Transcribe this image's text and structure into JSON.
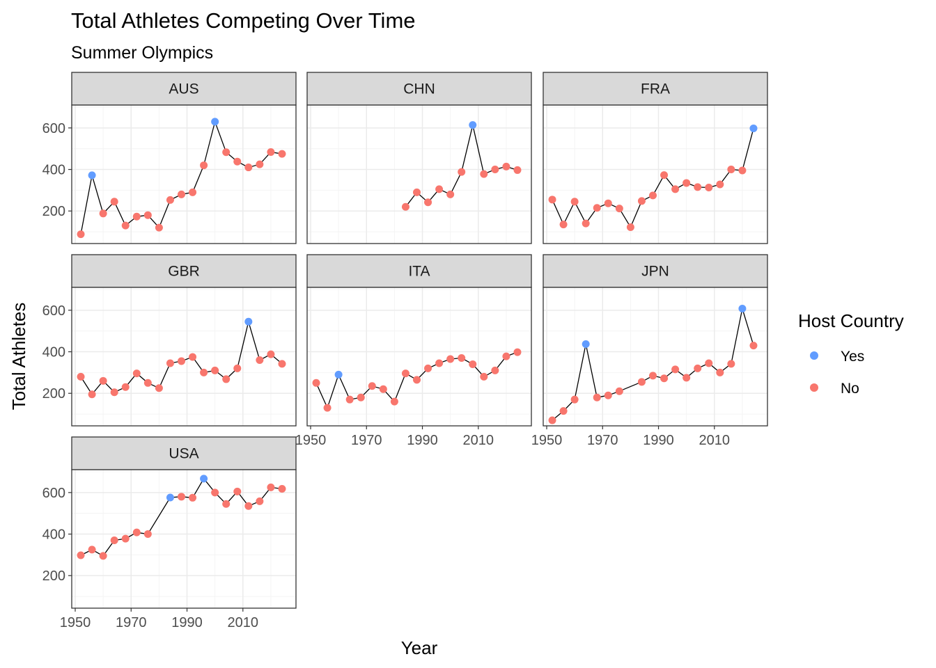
{
  "chart_data": {
    "type": "line",
    "title": "Total Athletes Competing Over Time",
    "subtitle": "Summer Olympics",
    "xlabel": "Year",
    "ylabel": "Total Athletes",
    "xlim": [
      1950,
      2026
    ],
    "ylim": [
      50,
      700
    ],
    "x_ticks": [
      1950,
      1970,
      1990,
      2010
    ],
    "y_ticks": [
      200,
      400,
      600
    ],
    "grid": true,
    "legend": {
      "title": "Host Country",
      "position": "right",
      "entries": [
        {
          "label": "Yes",
          "color": "#619CFF"
        },
        {
          "label": "No",
          "color": "#F8766D"
        }
      ]
    },
    "colors": {
      "Yes": "#619CFF",
      "No": "#F8766D",
      "line": "#000000",
      "strip": "#D9D9D9",
      "grid": "#EBEBEB"
    },
    "facets": [
      {
        "name": "AUS",
        "x": [
          1952,
          1956,
          1960,
          1964,
          1968,
          1972,
          1976,
          1980,
          1984,
          1988,
          1992,
          1996,
          2000,
          2004,
          2008,
          2012,
          2016,
          2020,
          2024
        ],
        "y": [
          88,
          372,
          188,
          245,
          130,
          173,
          180,
          120,
          253,
          280,
          290,
          420,
          630,
          483,
          438,
          410,
          425,
          484,
          475
        ],
        "host": [
          "No",
          "Yes",
          "No",
          "No",
          "No",
          "No",
          "No",
          "No",
          "No",
          "No",
          "No",
          "No",
          "Yes",
          "No",
          "No",
          "No",
          "No",
          "No",
          "No"
        ]
      },
      {
        "name": "CHN",
        "x": [
          1984,
          1988,
          1992,
          1996,
          2000,
          2004,
          2008,
          2012,
          2016,
          2020,
          2024
        ],
        "y": [
          220,
          290,
          242,
          305,
          280,
          388,
          614,
          378,
          400,
          414,
          397
        ],
        "host": [
          "No",
          "No",
          "No",
          "No",
          "No",
          "No",
          "Yes",
          "No",
          "No",
          "No",
          "No"
        ]
      },
      {
        "name": "FRA",
        "x": [
          1952,
          1956,
          1960,
          1964,
          1968,
          1972,
          1976,
          1980,
          1984,
          1988,
          1992,
          1996,
          2000,
          2004,
          2008,
          2012,
          2016,
          2020,
          2024
        ],
        "y": [
          255,
          135,
          245,
          140,
          215,
          237,
          212,
          122,
          248,
          275,
          373,
          305,
          335,
          315,
          313,
          328,
          400,
          395,
          598
        ],
        "host": [
          "No",
          "No",
          "No",
          "No",
          "No",
          "No",
          "No",
          "No",
          "No",
          "No",
          "No",
          "No",
          "No",
          "No",
          "No",
          "No",
          "No",
          "No",
          "Yes"
        ]
      },
      {
        "name": "GBR",
        "x": [
          1952,
          1956,
          1960,
          1964,
          1968,
          1972,
          1976,
          1980,
          1984,
          1988,
          1992,
          1996,
          2000,
          2004,
          2008,
          2012,
          2016,
          2020,
          2024
        ],
        "y": [
          280,
          195,
          260,
          205,
          230,
          296,
          250,
          225,
          345,
          355,
          375,
          300,
          310,
          268,
          320,
          545,
          360,
          388,
          342
        ],
        "host": [
          "No",
          "No",
          "No",
          "No",
          "No",
          "No",
          "No",
          "No",
          "No",
          "No",
          "No",
          "No",
          "No",
          "No",
          "No",
          "Yes",
          "No",
          "No",
          "No"
        ]
      },
      {
        "name": "ITA",
        "x": [
          1952,
          1956,
          1960,
          1964,
          1968,
          1972,
          1976,
          1980,
          1984,
          1988,
          1992,
          1996,
          2000,
          2004,
          2008,
          2012,
          2016,
          2020,
          2024
        ],
        "y": [
          250,
          130,
          290,
          170,
          180,
          235,
          220,
          160,
          296,
          265,
          320,
          345,
          365,
          370,
          340,
          280,
          310,
          378,
          398
        ],
        "host": [
          "No",
          "No",
          "Yes",
          "No",
          "No",
          "No",
          "No",
          "No",
          "No",
          "No",
          "No",
          "No",
          "No",
          "No",
          "No",
          "No",
          "No",
          "No",
          "No"
        ]
      },
      {
        "name": "JPN",
        "x": [
          1952,
          1956,
          1960,
          1964,
          1968,
          1972,
          1976,
          1984,
          1988,
          1992,
          1996,
          2000,
          2004,
          2008,
          2012,
          2016,
          2020,
          2024
        ],
        "y": [
          70,
          115,
          170,
          437,
          180,
          190,
          210,
          255,
          285,
          272,
          315,
          275,
          320,
          345,
          300,
          342,
          608,
          430
        ],
        "host": [
          "No",
          "No",
          "No",
          "Yes",
          "No",
          "No",
          "No",
          "No",
          "No",
          "No",
          "No",
          "No",
          "No",
          "No",
          "No",
          "No",
          "Yes",
          "No"
        ]
      },
      {
        "name": "USA",
        "x": [
          1952,
          1956,
          1960,
          1964,
          1968,
          1972,
          1976,
          1984,
          1988,
          1992,
          1996,
          2000,
          2004,
          2008,
          2012,
          2016,
          2020,
          2024
        ],
        "y": [
          298,
          325,
          295,
          370,
          378,
          408,
          400,
          576,
          580,
          575,
          667,
          600,
          545,
          605,
          535,
          558,
          625,
          618
        ],
        "host": [
          "No",
          "No",
          "No",
          "No",
          "No",
          "No",
          "No",
          "Yes",
          "No",
          "No",
          "Yes",
          "No",
          "No",
          "No",
          "No",
          "No",
          "No",
          "No"
        ]
      }
    ]
  }
}
